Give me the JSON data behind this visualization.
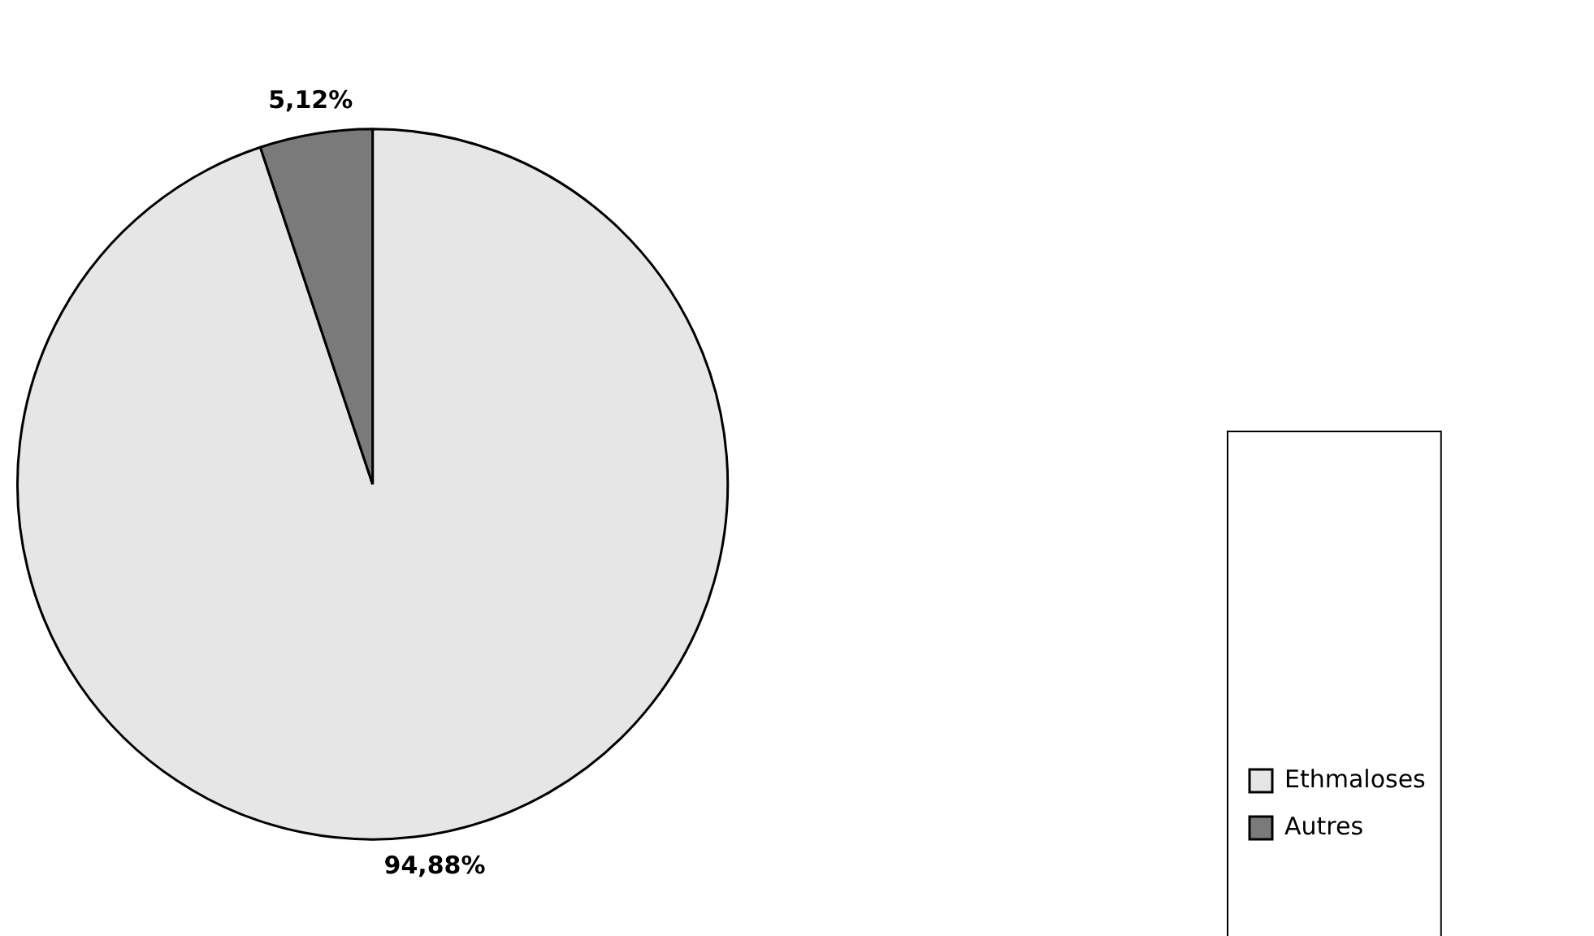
{
  "chart_data": {
    "type": "pie",
    "categories": [
      "Ethmaloses",
      "Autres"
    ],
    "values": [
      94.88,
      5.12
    ],
    "colors": [
      "#e6e6e6",
      "#7a7a7a"
    ],
    "value_labels": [
      "94,88%",
      "5,12%"
    ],
    "legend": "right"
  }
}
